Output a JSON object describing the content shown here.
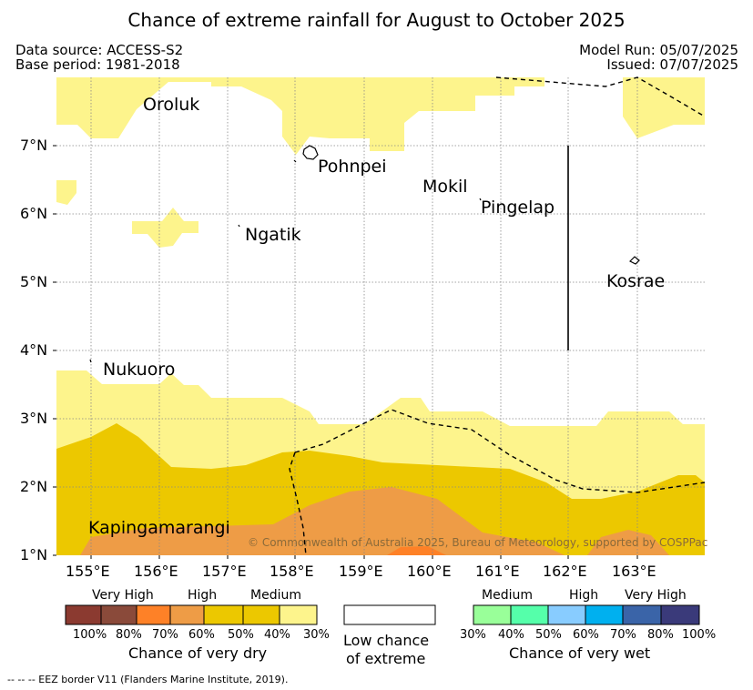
{
  "title": "Chance of extreme rainfall for August to October 2025",
  "meta": {
    "data_source": "Data source: ACCESS-S2",
    "base_period": "Base period: 1981-2018",
    "model_run": "Model Run: 05/07/2025",
    "issued": "Issued: 07/07/2025"
  },
  "axes": {
    "lat_labels": [
      "7°N",
      "6°N",
      "5°N",
      "4°N",
      "3°N",
      "2°N",
      "1°N"
    ],
    "lon_labels": [
      "155°E",
      "156°E",
      "157°E",
      "158°E",
      "159°E",
      "160°E",
      "161°E",
      "162°E",
      "163°E"
    ]
  },
  "places": {
    "oroluk": "Oroluk",
    "pohnpei": "Pohnpei",
    "mokil": "Mokil",
    "pingelap": "Pingelap",
    "ngatik": "Ngatik",
    "kosrae": "Kosrae",
    "nukuoro": "Nukuoro",
    "kapingamarangi": "Kapingamarangi"
  },
  "copyright": "© Commonwealth of Australia 2025, Bureau of Meteorology, supported by COSPPac",
  "colors": {
    "dry_30": "#fdf48c",
    "dry_40": "#ecc800",
    "dry_50": "#ee9c46",
    "dry_60": "#fe8127",
    "dry_70": "#fe7f27",
    "dry_80": "#8a4a3a",
    "dry_100": "#8b3a30",
    "wet_30": "#99ff99",
    "wet_40": "#55ffaa",
    "wet_50": "#88ccff",
    "wet_60": "#00b0ef",
    "wet_70": "#3a64a8",
    "wet_80": "#3a3a7a"
  },
  "legend": {
    "dry": {
      "categories": [
        "Very High",
        "High",
        "Medium"
      ],
      "ticks": [
        "100%",
        "80%",
        "70%",
        "60%",
        "50%",
        "40%",
        "30%"
      ],
      "caption": "Chance of very dry"
    },
    "low": {
      "caption_line1": "Low chance",
      "caption_line2": "of extreme"
    },
    "wet": {
      "categories": [
        "Medium",
        "High",
        "Very High"
      ],
      "ticks": [
        "30%",
        "40%",
        "50%",
        "60%",
        "70%",
        "80%",
        "100%"
      ],
      "caption": "Chance of very wet"
    }
  },
  "footer": "--  --  -- EEZ border V11 (Flanders Marine Institute, 2019)."
}
